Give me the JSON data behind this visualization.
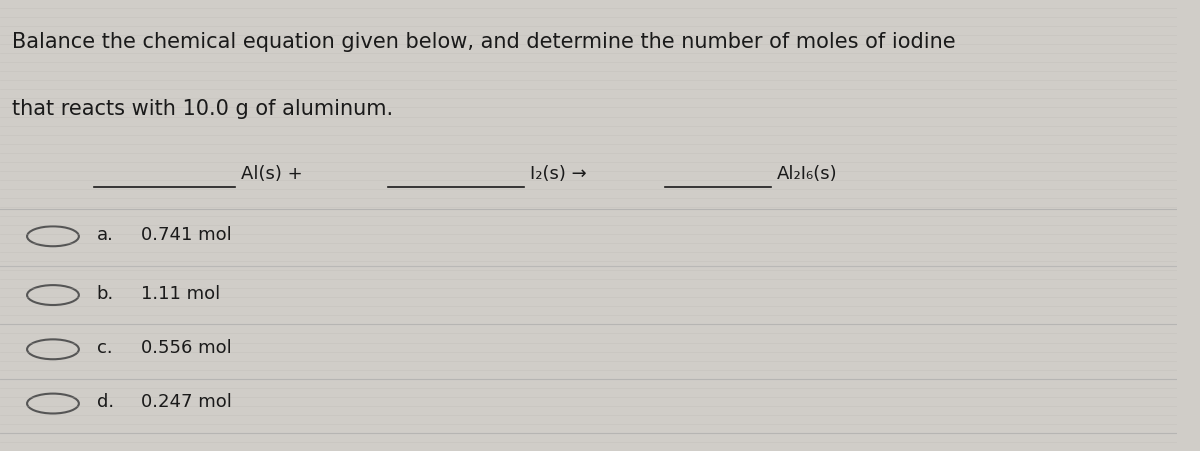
{
  "background_color": "#d0cdc8",
  "title_line1": "Balance the chemical equation given below, and determine the number of moles of iodine",
  "title_line2": "that reacts with 10.0 g of aluminum.",
  "choices": [
    {
      "label": "a.",
      "value": "0.741 mol"
    },
    {
      "label": "b.",
      "value": "1.11 mol"
    },
    {
      "label": "c.",
      "value": "0.556 mol"
    },
    {
      "label": "d.",
      "value": "0.247 mol"
    }
  ],
  "text_color": "#1a1a1a",
  "radio_color": "#555555",
  "font_size_title": 15,
  "font_size_equation": 13,
  "font_size_choices": 13,
  "underline_color": "#1a1a1a",
  "grid_line_color": "#b8b5b0",
  "separator_line_color": "#aaaaaa"
}
